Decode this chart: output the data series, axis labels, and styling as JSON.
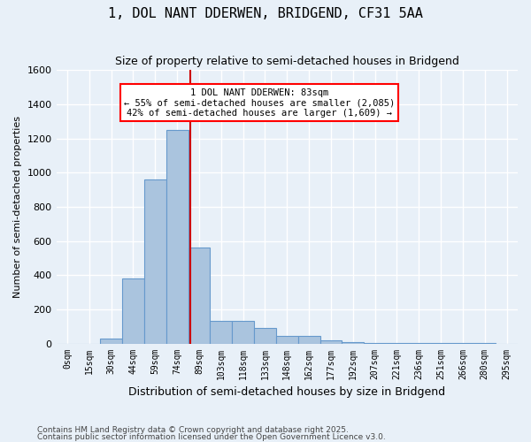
{
  "title": "1, DOL NANT DDERWEN, BRIDGEND, CF31 5AA",
  "subtitle": "Size of property relative to semi-detached houses in Bridgend",
  "xlabel": "Distribution of semi-detached houses by size in Bridgend",
  "ylabel": "Number of semi-detached properties",
  "bar_color": "#aac4de",
  "bar_edge_color": "#6699cc",
  "background_color": "#e8f0f8",
  "grid_color": "#ffffff",
  "bin_labels": [
    "0sqm",
    "15sqm",
    "30sqm",
    "44sqm",
    "59sqm",
    "74sqm",
    "89sqm",
    "103sqm",
    "118sqm",
    "133sqm",
    "148sqm",
    "162sqm",
    "177sqm",
    "192sqm",
    "207sqm",
    "221sqm",
    "236sqm",
    "251sqm",
    "266sqm",
    "280sqm",
    "295sqm"
  ],
  "bar_heights": [
    0,
    0,
    30,
    380,
    960,
    1250,
    560,
    130,
    130,
    90,
    45,
    45,
    20,
    10,
    5,
    5,
    5,
    2,
    2,
    2,
    0
  ],
  "red_line_x": 5.6,
  "red_line_color": "#cc0000",
  "ylim": [
    0,
    1600
  ],
  "annotation_text": "1 DOL NANT DDERWEN: 83sqm\n← 55% of semi-detached houses are smaller (2,085)\n42% of semi-detached houses are larger (1,609) →",
  "footnote1": "Contains HM Land Registry data © Crown copyright and database right 2025.",
  "footnote2": "Contains public sector information licensed under the Open Government Licence v3.0."
}
